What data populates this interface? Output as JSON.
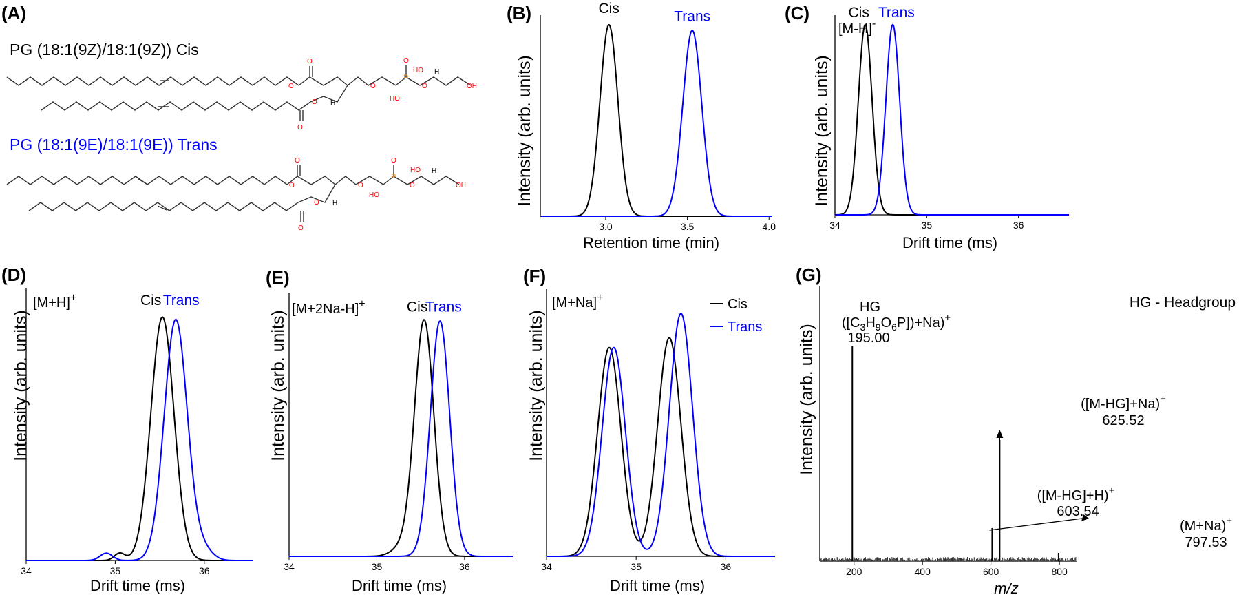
{
  "colors": {
    "cis": "#000000",
    "trans": "#0000ff",
    "atom_O": "#ff0000",
    "atom_P": "#ff8c00"
  },
  "panelA": {
    "letter": "(A)",
    "cis_name": "PG (18:1(9Z)/18:1(9Z))  Cis",
    "trans_name": "PG (18:1(9E)/18:1(9E))  Trans",
    "atoms": {
      "O": "O",
      "OH": "OH",
      "HO": "HO",
      "H": "H",
      "P": "P"
    }
  },
  "chart_data": [
    {
      "id": "B",
      "letter": "(B)",
      "type": "line",
      "xlabel": "Retention time (min)",
      "ylabel": "Intensity (arb. units)",
      "xlim": [
        2.6,
        4.02
      ],
      "ylim": [
        0,
        1.05
      ],
      "xticks": [
        3.0,
        3.5,
        4.0
      ],
      "xtick_labels": [
        "3.0",
        "3.5",
        "4.0"
      ],
      "series": [
        {
          "name": "Cis",
          "color": "#000000",
          "peaks": [
            {
              "x": 3.02,
              "h": 1.0,
              "w": 0.055
            }
          ]
        },
        {
          "name": "Trans",
          "color": "#0000ff",
          "peaks": [
            {
              "x": 3.53,
              "h": 0.97,
              "w": 0.058
            }
          ]
        }
      ],
      "labels": [
        {
          "text": "Cis",
          "x": 3.02,
          "y": 1.06,
          "color": "#000000"
        },
        {
          "text": "Trans",
          "x": 3.53,
          "y": 1.02,
          "color": "#0000ff"
        }
      ]
    },
    {
      "id": "C",
      "letter": "(C)",
      "type": "line",
      "xlabel": "Drift time (ms)",
      "ylabel": "Intensity (arb. units)",
      "ion": "[M-H]",
      "ion_charge": "-",
      "xlim": [
        34.0,
        36.55
      ],
      "ylim": [
        0,
        1.05
      ],
      "xticks": [
        34,
        35,
        36
      ],
      "xtick_labels": [
        "34",
        "35",
        "36"
      ],
      "series": [
        {
          "name": "Cis",
          "color": "#000000",
          "peaks": [
            {
              "x": 34.33,
              "h": 1.0,
              "w": 0.075
            }
          ]
        },
        {
          "name": "Trans",
          "color": "#0000ff",
          "peaks": [
            {
              "x": 34.63,
              "h": 1.0,
              "w": 0.075
            }
          ]
        }
      ],
      "labels": [
        {
          "text": "Cis",
          "x": 34.26,
          "y": 1.04,
          "color": "#000000"
        },
        {
          "text": "Trans",
          "x": 34.67,
          "y": 1.04,
          "color": "#0000ff"
        }
      ]
    },
    {
      "id": "D",
      "letter": "(D)",
      "type": "line",
      "xlabel": "Drift time (ms)",
      "ylabel": "Intensity (arb. units)",
      "ion": "[M+H]",
      "ion_charge": "+",
      "xlim": [
        34.0,
        36.55
      ],
      "ylim": [
        0,
        1.12
      ],
      "xticks": [
        34,
        35,
        36
      ],
      "xtick_labels": [
        "34",
        "35",
        "36"
      ],
      "series": [
        {
          "name": "Cis",
          "color": "#000000",
          "peaks": [
            {
              "x": 35.53,
              "h": 1.0,
              "w": 0.13
            },
            {
              "x": 35.05,
              "h": 0.03,
              "w": 0.06
            }
          ]
        },
        {
          "name": "Trans",
          "color": "#0000ff",
          "peaks": [
            {
              "x": 35.68,
              "h": 0.99,
              "w": 0.13
            },
            {
              "x": 34.9,
              "h": 0.03,
              "w": 0.07
            },
            {
              "x": 36.0,
              "h": 0.04,
              "w": 0.1
            }
          ]
        }
      ],
      "labels": [
        {
          "text": "Cis",
          "x": 35.4,
          "y": 1.05,
          "color": "#000000"
        },
        {
          "text": "Trans",
          "x": 35.74,
          "y": 1.05,
          "color": "#0000ff"
        }
      ]
    },
    {
      "id": "E",
      "letter": "(E)",
      "type": "line",
      "xlabel": "Drift time (ms)",
      "ylabel": "Intensity (arb. units)",
      "ion": "[M+2Na-H]",
      "ion_charge": "+",
      "xlim": [
        34.0,
        36.55
      ],
      "ylim": [
        0,
        1.12
      ],
      "xticks": [
        34,
        35,
        36
      ],
      "xtick_labels": [
        "34",
        "35",
        "36"
      ],
      "series": [
        {
          "name": "Cis",
          "color": "#000000",
          "peaks": [
            {
              "x": 35.54,
              "h": 1.0,
              "w": 0.11
            },
            {
              "x": 35.3,
              "h": 0.04,
              "w": 0.12
            }
          ]
        },
        {
          "name": "Trans",
          "color": "#0000ff",
          "peaks": [
            {
              "x": 35.72,
              "h": 1.0,
              "w": 0.11
            }
          ]
        }
      ],
      "labels": [
        {
          "text": "Cis",
          "x": 35.46,
          "y": 1.04,
          "color": "#000000"
        },
        {
          "text": "Trans",
          "x": 35.76,
          "y": 1.04,
          "color": "#0000ff"
        }
      ]
    },
    {
      "id": "F",
      "letter": "(F)",
      "type": "line",
      "xlabel": "Drift time (ms)",
      "ylabel": "Intensity (arb. units)",
      "ion": "[M+Na]",
      "ion_charge": "+",
      "xlim": [
        34.0,
        36.55
      ],
      "ylim": [
        0,
        1.1
      ],
      "xticks": [
        34,
        35,
        36
      ],
      "xtick_labels": [
        "34",
        "35",
        "36"
      ],
      "legend": {
        "placement": "top-right",
        "entries": [
          "Cis",
          "Trans"
        ]
      },
      "series": [
        {
          "name": "Cis",
          "color": "#000000",
          "peaks": [
            {
              "x": 34.7,
              "h": 0.86,
              "w": 0.13
            },
            {
              "x": 35.37,
              "h": 0.9,
              "w": 0.13
            }
          ]
        },
        {
          "name": "Trans",
          "color": "#0000ff",
          "peaks": [
            {
              "x": 34.75,
              "h": 0.86,
              "w": 0.13
            },
            {
              "x": 35.5,
              "h": 1.0,
              "w": 0.13
            }
          ]
        }
      ]
    },
    {
      "id": "G",
      "letter": "(G)",
      "type": "bar",
      "xlabel": "m/z",
      "ylabel": "Intensity (arb. units)",
      "xlim": [
        100,
        850
      ],
      "ylim": [
        0,
        1.0
      ],
      "xticks": [
        200,
        400,
        600,
        800
      ],
      "xtick_labels": [
        "200",
        "400",
        "600",
        "800"
      ],
      "note": "HG - Headgroup",
      "peaks": [
        {
          "mz": 195.0,
          "rel": 0.78,
          "label": "195.00"
        },
        {
          "mz": 603.54,
          "rel": 0.12,
          "label": "603.54"
        },
        {
          "mz": 625.52,
          "rel": 0.44,
          "label": "625.52"
        },
        {
          "mz": 797.53,
          "rel": 0.03,
          "label": "797.53"
        }
      ],
      "peak_labels": {
        "hg_title": "HG",
        "hg_formula_open": "([C",
        "hg_3": "3",
        "hg_H": "H",
        "hg_9": "9",
        "hg_O": "O",
        "hg_6": "6",
        "hg_formula_close": "P])+Na)",
        "m_hg_na": "([M-HG]+Na)",
        "m_hg_h": "([M-HG]+H)",
        "m_na": "(M+Na)",
        "plus": "+"
      }
    }
  ]
}
